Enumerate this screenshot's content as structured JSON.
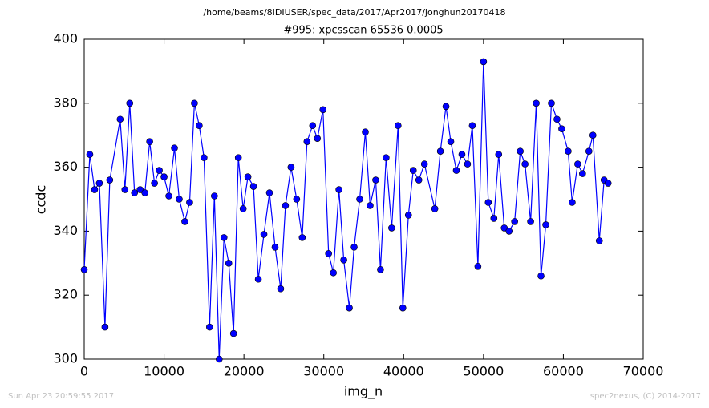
{
  "chart_data": {
    "type": "line",
    "title": "/home/beams/8IDIUSER/spec_data/2017/Apr2017/jonghun20170418",
    "subtitle": "#995: xpcsscan 65536 0.0005",
    "xlabel": "img_n",
    "ylabel": "ccdc",
    "color": "#0000ff",
    "marker": "circle",
    "x": [
      0,
      700,
      1300,
      1900,
      2600,
      3200,
      4500,
      5100,
      5700,
      6300,
      7000,
      7600,
      8200,
      8800,
      9400,
      10000,
      10600,
      11300,
      11900,
      12600,
      13200,
      13800,
      14400,
      15000,
      15700,
      16300,
      16900,
      17500,
      18100,
      18700,
      19300,
      19900,
      20500,
      21200,
      21800,
      22500,
      23200,
      23900,
      24600,
      25200,
      25900,
      26600,
      27300,
      27900,
      28600,
      29200,
      29900,
      30600,
      31200,
      31900,
      32500,
      33200,
      33800,
      34500,
      35200,
      35800,
      36500,
      37100,
      37800,
      38500,
      39300,
      39900,
      40600,
      41200,
      41900,
      42600,
      43900,
      44600,
      45300,
      45900,
      46600,
      47300,
      48000,
      48600,
      49300,
      50000,
      50600,
      51300,
      51900,
      52600,
      53200,
      53900,
      54600,
      55200,
      55900,
      56600,
      57200,
      57800,
      58500,
      59200,
      59800,
      60600,
      61100,
      61800,
      62400,
      63200,
      63700,
      64500,
      65100,
      65600
    ],
    "y": [
      328,
      364,
      353,
      355,
      310,
      356,
      375,
      353,
      380,
      352,
      353,
      352,
      368,
      355,
      359,
      357,
      351,
      366,
      350,
      343,
      349,
      380,
      373,
      363,
      310,
      351,
      300,
      338,
      330,
      308,
      363,
      347,
      357,
      354,
      325,
      339,
      352,
      335,
      322,
      348,
      360,
      350,
      338,
      368,
      373,
      369,
      378,
      333,
      327,
      353,
      331,
      316,
      335,
      350,
      371,
      348,
      356,
      328,
      363,
      341,
      373,
      316,
      345,
      359,
      356,
      361,
      347,
      365,
      379,
      368,
      359,
      364,
      361,
      373,
      329,
      393,
      349,
      344,
      364,
      341,
      340,
      343,
      365,
      361,
      343,
      380,
      326,
      342,
      380,
      375,
      372,
      365,
      349,
      361,
      358,
      365,
      370,
      337,
      356,
      355
    ],
    "xlim": [
      0,
      70000
    ],
    "xticks": [
      0,
      10000,
      20000,
      30000,
      40000,
      50000,
      60000,
      70000
    ],
    "ylim": [
      300,
      400
    ],
    "yticks": [
      300,
      320,
      340,
      360,
      380,
      400
    ]
  },
  "timestamp": "Sun Apr 23 20:59:55 2017",
  "credit": "spec2nexus, (C) 2014-2017"
}
